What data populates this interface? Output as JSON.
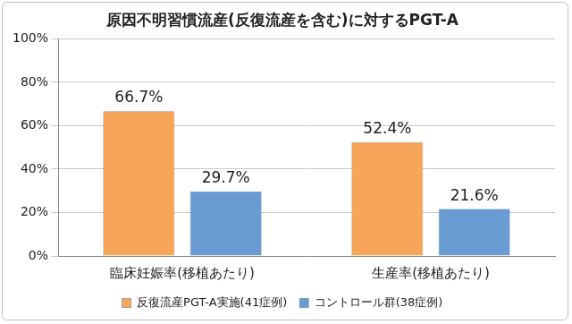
{
  "chart_data": {
    "type": "bar",
    "title": "原因不明習慣流産(反復流産を含む)に対するPGT-A",
    "categories": [
      "臨床妊娠率(移植あたり)",
      "生産率(移植あたり)"
    ],
    "series": [
      {
        "name": "反復流産PGT-A実施(41症例)",
        "color": "#f7a558",
        "values": [
          66.7,
          52.4
        ],
        "value_labels": [
          "66.7%",
          "52.4%"
        ]
      },
      {
        "name": "コントロール群(38症例)",
        "color": "#6a9bd3",
        "values": [
          29.7,
          21.6
        ],
        "value_labels": [
          "29.7%",
          "21.6%"
        ]
      }
    ],
    "ylim": [
      0,
      100
    ],
    "yticks": [
      {
        "value": 0,
        "label": "0%"
      },
      {
        "value": 20,
        "label": "20%"
      },
      {
        "value": 40,
        "label": "40%"
      },
      {
        "value": 60,
        "label": "60%"
      },
      {
        "value": 80,
        "label": "80%"
      },
      {
        "value": 100,
        "label": "100%"
      }
    ],
    "grid": true,
    "legend": "bottom",
    "data_labels": true
  }
}
